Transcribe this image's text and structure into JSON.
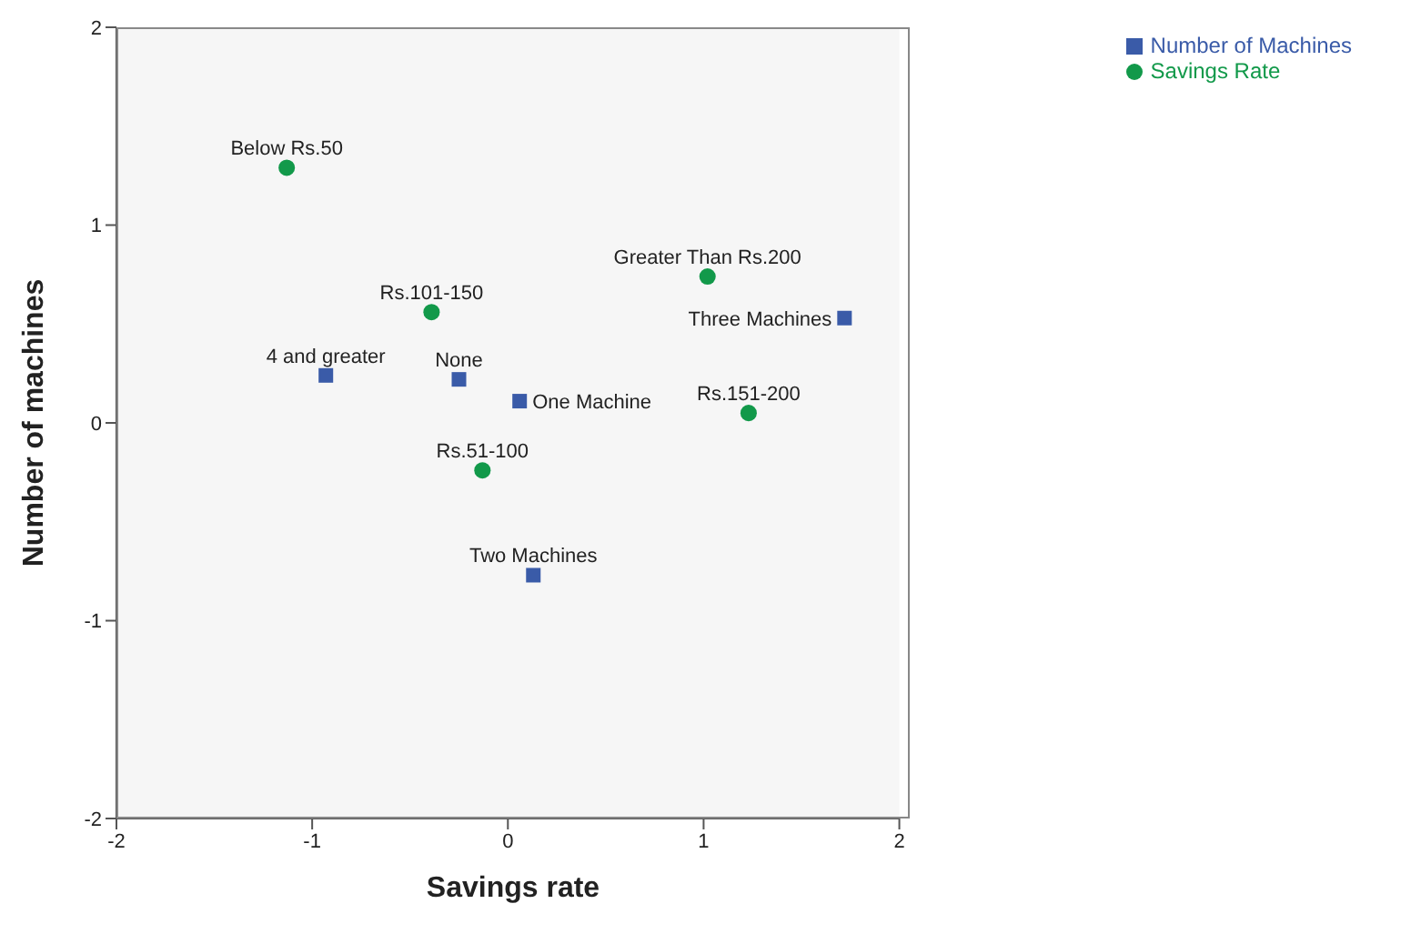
{
  "chart_data": {
    "type": "scatter",
    "xlabel": "Savings rate",
    "ylabel": "Number of machines",
    "xlim": [
      -2,
      2
    ],
    "xticks": [
      -2,
      -1,
      0,
      1,
      2
    ],
    "ylim": [
      -2,
      2
    ],
    "yticks": [
      -2,
      -1,
      0,
      1,
      2
    ],
    "grid": false,
    "legend": "top right",
    "series": [
      {
        "name": "Number of Machines",
        "color": "#3a5ba8",
        "marker": "square",
        "x": [
          -0.93,
          -0.25,
          0.06,
          1.72,
          0.13
        ],
        "values": [
          0.24,
          0.22,
          0.11,
          0.53,
          -0.77
        ]
      },
      {
        "name": "Savings Rate",
        "color": "#12994a",
        "marker": "circle",
        "x": [
          -1.13,
          -0.39,
          1.02,
          1.23,
          -0.13
        ],
        "values": [
          1.29,
          0.56,
          0.74,
          0.05,
          -0.24
        ]
      }
    ],
    "annotations": [
      {
        "text": "4 and greater",
        "x": -0.93,
        "y": 0.24
      },
      {
        "text": "None",
        "x": -0.25,
        "y": 0.22
      },
      {
        "text": "One Machine",
        "x": 0.06,
        "y": 0.11
      },
      {
        "text": "Three Machines",
        "x": 1.72,
        "y": 0.53
      },
      {
        "text": "Two Machines",
        "x": 0.13,
        "y": -0.77
      },
      {
        "text": "Below Rs.50",
        "x": -1.13,
        "y": 1.29
      },
      {
        "text": "Rs.101-150",
        "x": -0.39,
        "y": 0.56
      },
      {
        "text": "Greater Than Rs.200",
        "x": 1.02,
        "y": 0.74
      },
      {
        "text": "Rs.151-200",
        "x": 1.23,
        "y": 0.05
      },
      {
        "text": "Rs.51-100",
        "x": -0.13,
        "y": -0.24
      }
    ]
  }
}
